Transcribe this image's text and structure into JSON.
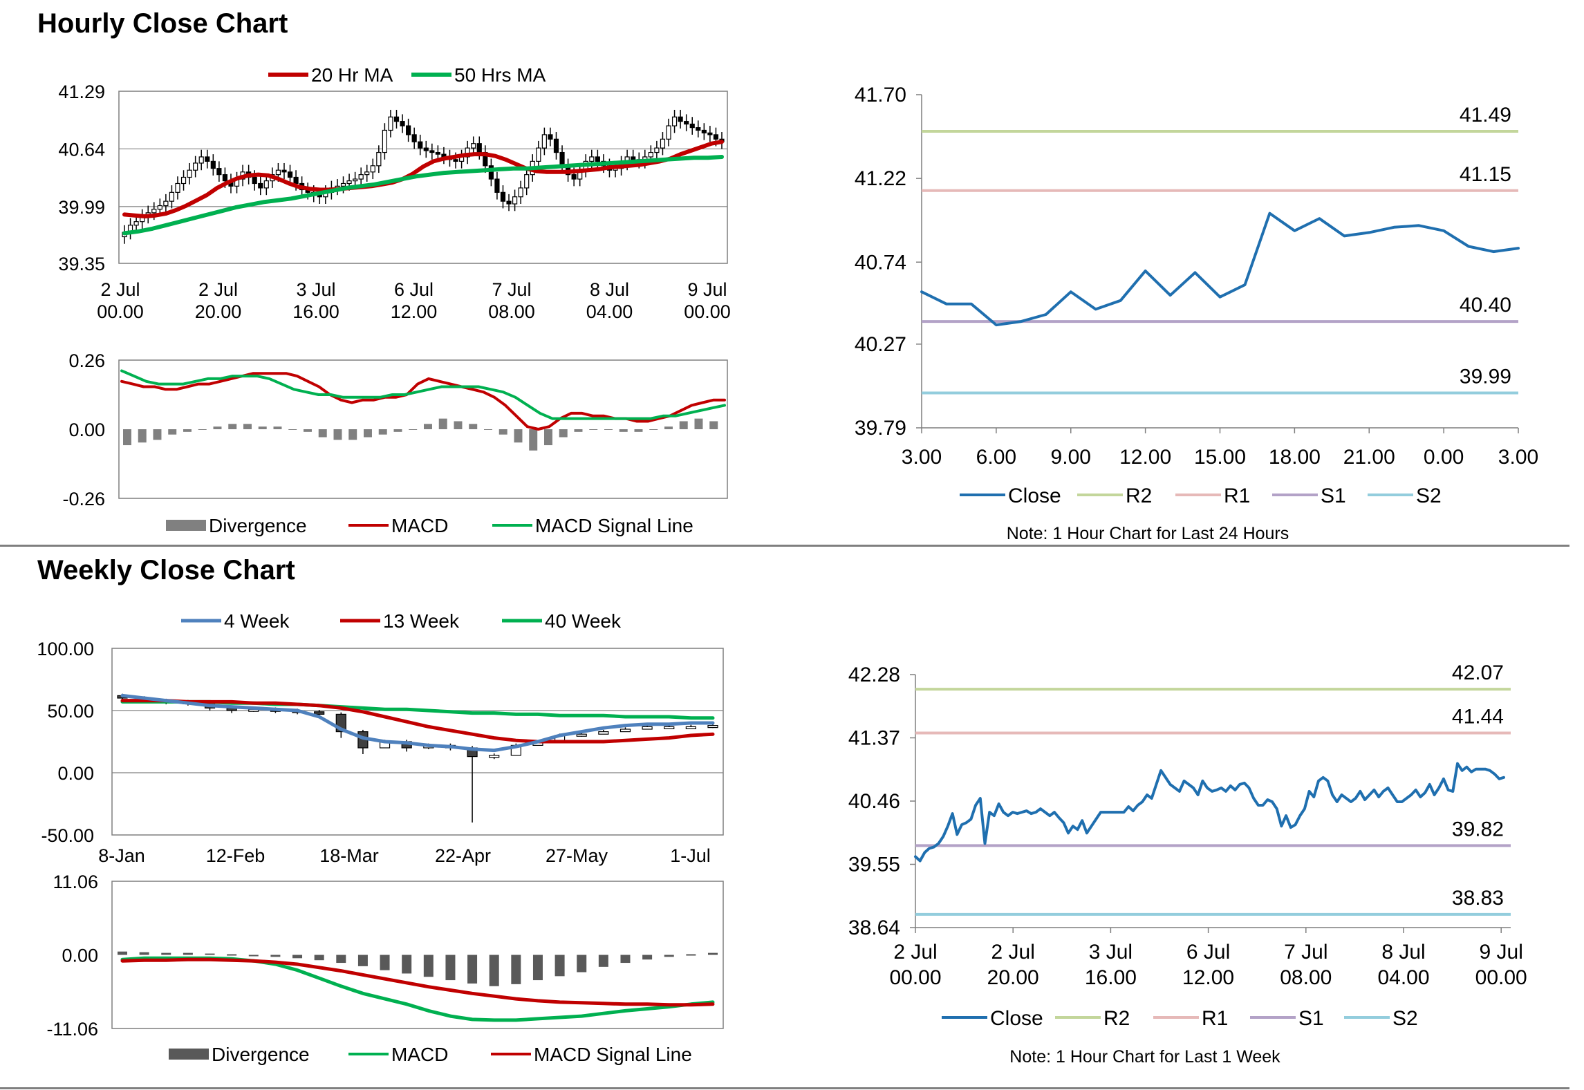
{
  "sections": {
    "hourly_title": "Hourly Close Chart",
    "weekly_title": "Weekly Close Chart"
  },
  "colors": {
    "red": "#c00000",
    "green": "#00b050",
    "blue": "#1f6faf",
    "blue_light": "#4f81bd",
    "grey": "#808080",
    "r2": "#c3d69b",
    "r1": "#e6b9b8",
    "s1": "#b3a2c7",
    "s2": "#93cddd"
  },
  "chart_data": [
    {
      "id": "hourly_price",
      "type": "candlestick",
      "title": "",
      "legend": [
        "20 Hr MA",
        "50 Hrs MA"
      ],
      "y_ticks": [
        "41.29",
        "40.64",
        "39.99",
        "39.35"
      ],
      "ylim": [
        39.35,
        41.29
      ],
      "x_ticks": [
        [
          "2 Jul",
          "00.00"
        ],
        [
          "2 Jul",
          "20.00"
        ],
        [
          "3 Jul",
          "16.00"
        ],
        [
          "6 Jul",
          "12.00"
        ],
        [
          "7 Jul",
          "08.00"
        ],
        [
          "8 Jul",
          "04.00"
        ],
        [
          "9 Jul",
          "00.00"
        ]
      ],
      "close": [
        39.7,
        39.78,
        39.82,
        39.88,
        39.92,
        39.96,
        40.0,
        40.05,
        40.15,
        40.25,
        40.32,
        40.4,
        40.48,
        40.55,
        40.5,
        40.42,
        40.35,
        40.28,
        40.22,
        40.3,
        40.38,
        40.32,
        40.25,
        40.2,
        40.28,
        40.35,
        40.4,
        40.38,
        40.32,
        40.25,
        40.18,
        40.15,
        40.12,
        40.1,
        40.15,
        40.2,
        40.22,
        40.25,
        40.28,
        40.3,
        40.35,
        40.38,
        40.45,
        40.6,
        40.85,
        41.0,
        40.95,
        40.9,
        40.8,
        40.72,
        40.65,
        40.62,
        40.6,
        40.58,
        40.55,
        40.52,
        40.5,
        40.55,
        40.65,
        40.7,
        40.6,
        40.45,
        40.3,
        40.15,
        40.05,
        40.02,
        40.1,
        40.2,
        40.35,
        40.5,
        40.65,
        40.8,
        40.75,
        40.6,
        40.45,
        40.35,
        40.3,
        40.4,
        40.5,
        40.55,
        40.5,
        40.45,
        40.4,
        40.42,
        40.48,
        40.55,
        40.52,
        40.5,
        40.55,
        40.6,
        40.65,
        40.75,
        40.9,
        41.0,
        40.95,
        40.92,
        40.88,
        40.85,
        40.82,
        40.8,
        40.75,
        40.72
      ],
      "ma20": [
        39.9,
        39.89,
        39.88,
        39.89,
        39.91,
        39.95,
        40.0,
        40.06,
        40.12,
        40.2,
        40.26,
        40.31,
        40.34,
        40.35,
        40.34,
        40.3,
        40.25,
        40.21,
        40.19,
        40.18,
        40.18,
        40.19,
        40.2,
        40.21,
        40.22,
        40.24,
        40.26,
        40.3,
        40.36,
        40.44,
        40.5,
        40.53,
        40.55,
        40.57,
        40.58,
        40.58,
        40.56,
        40.52,
        40.47,
        40.42,
        40.39,
        40.38,
        40.38,
        40.38,
        40.39,
        40.4,
        40.41,
        40.43,
        40.44,
        40.45,
        40.46,
        40.48,
        40.5,
        40.53,
        40.58,
        40.62,
        40.66,
        40.7,
        40.72
      ],
      "ma50": [
        39.69,
        39.71,
        39.74,
        39.78,
        39.82,
        39.86,
        39.9,
        39.94,
        39.98,
        40.01,
        40.04,
        40.06,
        40.08,
        40.11,
        40.14,
        40.17,
        40.2,
        40.22,
        40.24,
        40.27,
        40.3,
        40.33,
        40.35,
        40.37,
        40.38,
        40.39,
        40.4,
        40.41,
        40.42,
        40.42,
        40.43,
        40.44,
        40.45,
        40.46,
        40.47,
        40.48,
        40.49,
        40.5,
        40.51,
        40.52,
        40.53,
        40.54,
        40.54,
        40.55
      ]
    },
    {
      "id": "hourly_macd",
      "type": "line+bar",
      "legend": [
        "Divergence",
        "MACD",
        "MACD Signal Line"
      ],
      "y_ticks": [
        "0.26",
        "0.00",
        "-0.26"
      ],
      "ylim": [
        -0.26,
        0.26
      ],
      "macd": [
        0.18,
        0.17,
        0.16,
        0.16,
        0.15,
        0.15,
        0.16,
        0.17,
        0.17,
        0.18,
        0.19,
        0.2,
        0.21,
        0.21,
        0.21,
        0.21,
        0.2,
        0.18,
        0.16,
        0.13,
        0.11,
        0.1,
        0.11,
        0.11,
        0.12,
        0.12,
        0.13,
        0.17,
        0.19,
        0.18,
        0.17,
        0.16,
        0.15,
        0.14,
        0.12,
        0.09,
        0.05,
        0.01,
        0.0,
        0.01,
        0.04,
        0.06,
        0.06,
        0.05,
        0.05,
        0.04,
        0.04,
        0.03,
        0.03,
        0.04,
        0.05,
        0.07,
        0.09,
        0.1,
        0.11,
        0.11
      ],
      "signal": [
        0.22,
        0.2,
        0.18,
        0.17,
        0.17,
        0.17,
        0.18,
        0.19,
        0.19,
        0.2,
        0.2,
        0.2,
        0.19,
        0.17,
        0.15,
        0.14,
        0.13,
        0.13,
        0.12,
        0.12,
        0.12,
        0.12,
        0.13,
        0.13,
        0.14,
        0.15,
        0.16,
        0.16,
        0.16,
        0.16,
        0.15,
        0.14,
        0.12,
        0.09,
        0.06,
        0.04,
        0.04,
        0.04,
        0.04,
        0.04,
        0.04,
        0.04,
        0.04,
        0.04,
        0.05,
        0.05,
        0.06,
        0.07,
        0.08,
        0.09
      ],
      "divergence": [
        -0.06,
        -0.05,
        -0.04,
        -0.02,
        -0.01,
        0.0,
        0.01,
        0.02,
        0.02,
        0.01,
        0.01,
        0.0,
        -0.01,
        -0.03,
        -0.04,
        -0.04,
        -0.03,
        -0.02,
        -0.01,
        0.0,
        0.02,
        0.04,
        0.03,
        0.02,
        0.0,
        -0.02,
        -0.05,
        -0.08,
        -0.06,
        -0.03,
        -0.01,
        0.0,
        0.0,
        -0.01,
        -0.01,
        0.0,
        0.01,
        0.03,
        0.04,
        0.03
      ]
    },
    {
      "id": "hourly_close_24h",
      "type": "line",
      "legend": [
        "Close",
        "R2",
        "R1",
        "S1",
        "S2"
      ],
      "note": "Note: 1 Hour Chart for Last 24 Hours",
      "y_ticks": [
        "41.70",
        "41.22",
        "40.74",
        "40.27",
        "39.79"
      ],
      "ylim": [
        39.79,
        41.7
      ],
      "x_ticks": [
        "3.00",
        "6.00",
        "9.00",
        "12.00",
        "15.00",
        "18.00",
        "21.00",
        "0.00",
        "3.00"
      ],
      "x": [
        3,
        4,
        5,
        6,
        7,
        8,
        9,
        10,
        11,
        12,
        13,
        14,
        15,
        16,
        17,
        18,
        19,
        20,
        21,
        22,
        23,
        24,
        25,
        26,
        27
      ],
      "values": [
        40.57,
        40.5,
        40.5,
        40.38,
        40.4,
        40.44,
        40.57,
        40.47,
        40.52,
        40.69,
        40.55,
        40.68,
        40.54,
        40.61,
        41.02,
        40.92,
        40.99,
        40.89,
        40.91,
        40.94,
        40.95,
        40.92,
        40.83,
        40.8,
        40.82
      ],
      "levels": [
        {
          "name": "R2",
          "value": 41.49,
          "label": "41.49"
        },
        {
          "name": "R1",
          "value": 41.15,
          "label": "41.15"
        },
        {
          "name": "S1",
          "value": 40.4,
          "label": "40.40"
        },
        {
          "name": "S2",
          "value": 39.99,
          "label": "39.99"
        }
      ]
    },
    {
      "id": "weekly_price",
      "type": "candlestick",
      "legend": [
        "4 Week",
        "13 Week",
        "40 Week"
      ],
      "y_ticks": [
        "100.00",
        "50.00",
        "0.00",
        "-50.00"
      ],
      "ylim": [
        -50,
        100
      ],
      "x_ticks": [
        "8-Jan",
        "12-Feb",
        "18-Mar",
        "22-Apr",
        "27-May",
        "1-Jul"
      ],
      "close": [
        60,
        58,
        57,
        56,
        52,
        50,
        51,
        50,
        49,
        47,
        33,
        20,
        25,
        20,
        22,
        20,
        13,
        14,
        22,
        24,
        30,
        31,
        33,
        35,
        37,
        37,
        37,
        38
      ],
      "low": [
        58,
        56,
        55,
        54,
        50,
        48,
        49,
        48,
        47,
        44,
        28,
        15,
        22,
        17,
        19,
        18,
        -40,
        11,
        20,
        22,
        28,
        29,
        31,
        33,
        35,
        35,
        35,
        36
      ],
      "week4": [
        62,
        60,
        58,
        56,
        54,
        53,
        52,
        51,
        50,
        45,
        35,
        28,
        25,
        24,
        22,
        21,
        19,
        18,
        21,
        25,
        30,
        33,
        36,
        38,
        39,
        39,
        40,
        40
      ],
      "week13": [
        58,
        58,
        58,
        57,
        57,
        57,
        56,
        56,
        55,
        54,
        52,
        49,
        45,
        41,
        37,
        34,
        31,
        28,
        26,
        25,
        25,
        25,
        25,
        26,
        27,
        28,
        30,
        31
      ],
      "week40": [
        57,
        57,
        57,
        57,
        57,
        56,
        56,
        55,
        55,
        54,
        53,
        52,
        51,
        51,
        50,
        49,
        48,
        48,
        47,
        47,
        46,
        46,
        46,
        45,
        45,
        45,
        44,
        44
      ]
    },
    {
      "id": "weekly_macd",
      "type": "line+bar",
      "legend": [
        "Divergence",
        "MACD",
        "MACD Signal Line"
      ],
      "y_ticks": [
        "11.06",
        "0.00",
        "-11.06"
      ],
      "ylim": [
        -11.06,
        11.06
      ],
      "divergence": [
        0.5,
        0.4,
        0.3,
        0.3,
        0.2,
        0.1,
        -0.1,
        -0.3,
        -0.5,
        -0.8,
        -1.2,
        -1.7,
        -2.3,
        -2.8,
        -3.3,
        -3.8,
        -4.3,
        -4.7,
        -4.4,
        -3.8,
        -3.2,
        -2.6,
        -1.8,
        -1.2,
        -0.7,
        -0.3,
        0.1,
        0.3
      ],
      "macd": [
        -0.7,
        -0.5,
        -0.5,
        -0.5,
        -0.5,
        -0.6,
        -0.9,
        -1.4,
        -2.3,
        -3.5,
        -4.7,
        -5.8,
        -6.6,
        -7.4,
        -8.4,
        -9.2,
        -9.7,
        -9.8,
        -9.8,
        -9.6,
        -9.4,
        -9.2,
        -8.8,
        -8.4,
        -8.1,
        -7.8,
        -7.4,
        -7.1
      ],
      "signal": [
        -0.9,
        -0.8,
        -0.8,
        -0.7,
        -0.7,
        -0.8,
        -0.9,
        -1.1,
        -1.4,
        -1.9,
        -2.4,
        -3.0,
        -3.6,
        -4.2,
        -4.8,
        -5.3,
        -5.8,
        -6.2,
        -6.6,
        -6.9,
        -7.1,
        -7.2,
        -7.3,
        -7.4,
        -7.4,
        -7.5,
        -7.5,
        -7.4
      ]
    },
    {
      "id": "weekly_close_1w",
      "type": "line",
      "legend": [
        "Close",
        "R2",
        "R1",
        "S1",
        "S2"
      ],
      "note": "Note: 1 Hour Chart for Last 1 Week",
      "y_ticks": [
        "42.28",
        "41.37",
        "40.46",
        "39.55",
        "38.64"
      ],
      "ylim": [
        38.64,
        42.28
      ],
      "x_ticks": [
        [
          "2 Jul",
          "00.00"
        ],
        [
          "2 Jul",
          "20.00"
        ],
        [
          "3 Jul",
          "16.00"
        ],
        [
          "6 Jul",
          "12.00"
        ],
        [
          "7 Jul",
          "08.00"
        ],
        [
          "8 Jul",
          "04.00"
        ],
        [
          "9 Jul",
          "00.00"
        ]
      ],
      "values": [
        39.66,
        39.6,
        39.72,
        39.78,
        39.8,
        39.85,
        39.95,
        40.1,
        40.28,
        39.98,
        40.12,
        40.15,
        40.2,
        40.4,
        40.5,
        39.85,
        40.3,
        40.25,
        40.42,
        40.3,
        40.25,
        40.3,
        40.28,
        40.3,
        40.32,
        40.28,
        40.3,
        40.35,
        40.3,
        40.25,
        40.3,
        40.22,
        40.15,
        40.0,
        40.1,
        40.05,
        40.18,
        40.0,
        40.1,
        40.2,
        40.3,
        40.3,
        40.3,
        40.3,
        40.3,
        40.3,
        40.38,
        40.32,
        40.4,
        40.45,
        40.55,
        40.5,
        40.7,
        40.9,
        40.8,
        40.7,
        40.65,
        40.6,
        40.75,
        40.7,
        40.65,
        40.55,
        40.75,
        40.65,
        40.6,
        40.62,
        40.65,
        40.6,
        40.68,
        40.62,
        40.7,
        40.72,
        40.65,
        40.5,
        40.4,
        40.4,
        40.48,
        40.45,
        40.35,
        40.1,
        40.25,
        40.08,
        40.12,
        40.25,
        40.35,
        40.6,
        40.52,
        40.75,
        40.8,
        40.75,
        40.55,
        40.45,
        40.55,
        40.5,
        40.45,
        40.5,
        40.6,
        40.48,
        40.55,
        40.62,
        40.52,
        40.6,
        40.65,
        40.55,
        40.45,
        40.45,
        40.5,
        40.55,
        40.62,
        40.52,
        40.58,
        40.7,
        40.55,
        40.65,
        40.78,
        40.62,
        40.6,
        41.0,
        40.9,
        40.95,
        40.88,
        40.92,
        40.92,
        40.92,
        40.9,
        40.85,
        40.78,
        40.8
      ],
      "levels": [
        {
          "name": "R2",
          "value": 42.07,
          "label": "42.07"
        },
        {
          "name": "R1",
          "value": 41.44,
          "label": "41.44"
        },
        {
          "name": "S1",
          "value": 39.82,
          "label": "39.82"
        },
        {
          "name": "S2",
          "value": 38.83,
          "label": "38.83"
        }
      ]
    }
  ]
}
